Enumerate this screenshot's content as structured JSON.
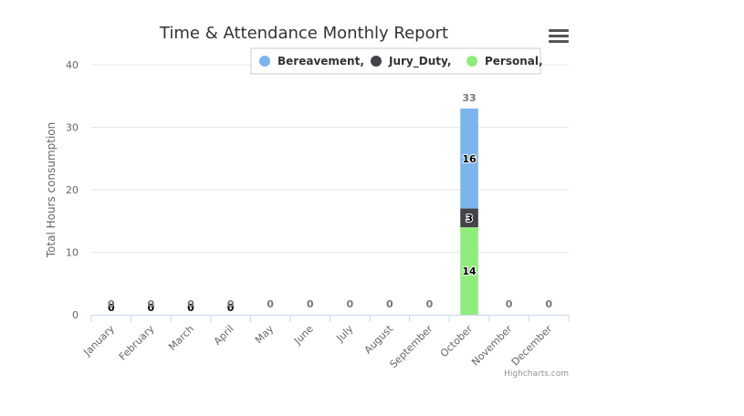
{
  "credits": "Highcharts.com",
  "menu_icon": "hamburger-menu-icon",
  "chart_data": {
    "type": "bar",
    "stacked": true,
    "title": "Time & Attendance Monthly Report",
    "xlabel": "",
    "ylabel": "Total Hours consumption",
    "ylim": [
      0,
      40
    ],
    "yticks": [
      0,
      10,
      20,
      30,
      40
    ],
    "grid": true,
    "legend_position": "top-right",
    "categories": [
      "January",
      "February",
      "March",
      "April",
      "May",
      "June",
      "July",
      "August",
      "September",
      "October",
      "November",
      "December"
    ],
    "series": [
      {
        "name": "Bereavement,",
        "color": "#7cb5ec",
        "values": [
          0,
          0,
          0,
          0,
          0,
          0,
          0,
          0,
          0,
          16,
          0,
          0
        ]
      },
      {
        "name": "Jury_Duty,",
        "color": "#434348",
        "values": [
          0,
          0,
          0,
          0,
          0,
          0,
          0,
          0,
          0,
          3,
          0,
          0
        ]
      },
      {
        "name": "Personal,",
        "color": "#90ed7d",
        "values": [
          0,
          0,
          0,
          0,
          0,
          0,
          0,
          0,
          0,
          14,
          0,
          0
        ]
      }
    ],
    "stack_totals": [
      0,
      0,
      0,
      0,
      0,
      0,
      0,
      0,
      0,
      33,
      0,
      0
    ]
  }
}
